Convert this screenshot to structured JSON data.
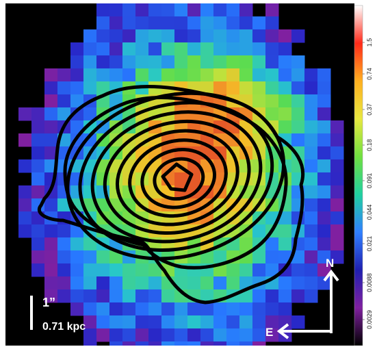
{
  "image": {
    "description_kind": "astronomical emission map with contour overlay",
    "background_color": "#000000"
  },
  "colorbar": {
    "ticks": [
      "1.5",
      "0.74",
      "0.37",
      "0.18",
      "0.091",
      "0.044",
      "0.021",
      "0.0088",
      "0.0029"
    ],
    "colors": [
      "#ffffff",
      "#ff2a1a",
      "#ffb020",
      "#e8e840",
      "#70e040",
      "#20d0a0",
      "#3080ff",
      "#2020b0",
      "#8020a0",
      "#000000"
    ]
  },
  "scalebar": {
    "angular_label": "1”",
    "physical_label": "0.71 kpc"
  },
  "compass": {
    "north_label": "N",
    "east_label": "E"
  },
  "contours": {
    "count": 10,
    "color": "#000000"
  }
}
